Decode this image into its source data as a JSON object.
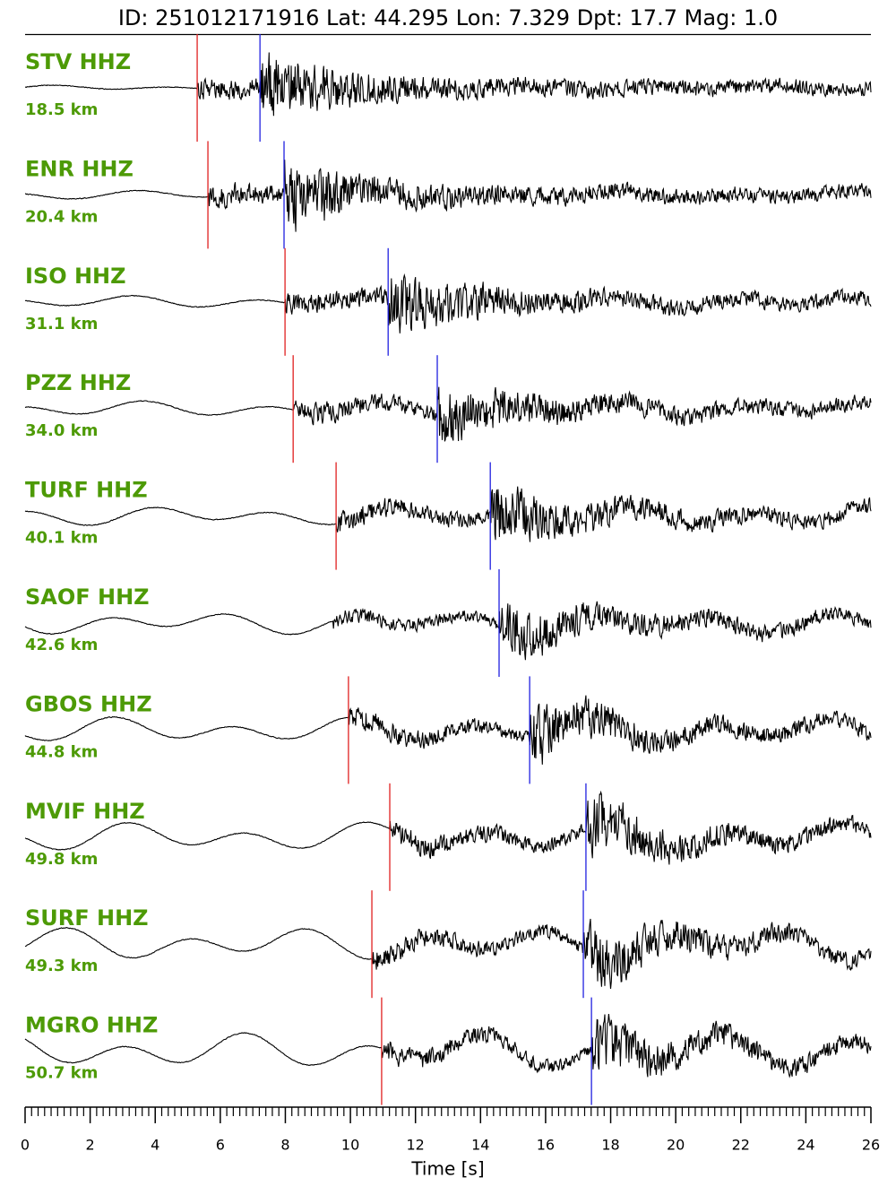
{
  "chart_data": {
    "type": "seismogram",
    "title": "ID: 251012171916 Lat:  44.295 Lon:   7.329 Dpt:    17.7 Mag:   1.0",
    "xlabel": "Time [s]",
    "xlim": [
      0,
      26
    ],
    "xticks": [
      0,
      2,
      4,
      6,
      8,
      10,
      12,
      14,
      16,
      18,
      20,
      22,
      24,
      26
    ],
    "xminor": 10,
    "label_color": "#4d9a06",
    "p_color": "#e02020",
    "s_color": "#2020e0",
    "trace_color": "#000000",
    "traces": [
      {
        "name": "STV HHZ",
        "distance": "18.5 km",
        "p": 5.29,
        "s": 7.22
      },
      {
        "name": "ENR HHZ",
        "distance": "20.4 km",
        "p": 5.62,
        "s": 7.96
      },
      {
        "name": "ISO HHZ",
        "distance": "31.1 km",
        "p": 7.99,
        "s": 11.16
      },
      {
        "name": "PZZ HHZ",
        "distance": "34.0 km",
        "p": 8.24,
        "s": 12.67
      },
      {
        "name": "TURF HHZ",
        "distance": "40.1 km",
        "p": 9.56,
        "s": 14.3
      },
      {
        "name": "SAOF HHZ",
        "distance": "42.6 km",
        "p": null,
        "s": 14.57
      },
      {
        "name": "GBOS HHZ",
        "distance": "44.8 km",
        "p": 9.94,
        "s": 15.51
      },
      {
        "name": "MVIF HHZ",
        "distance": "49.8 km",
        "p": 11.21,
        "s": 17.24
      },
      {
        "name": "SURF HHZ",
        "distance": "49.3 km",
        "p": 10.66,
        "s": 17.16
      },
      {
        "name": "MGRO HHZ",
        "distance": "50.7 km",
        "p": 10.96,
        "s": 17.41
      }
    ]
  }
}
